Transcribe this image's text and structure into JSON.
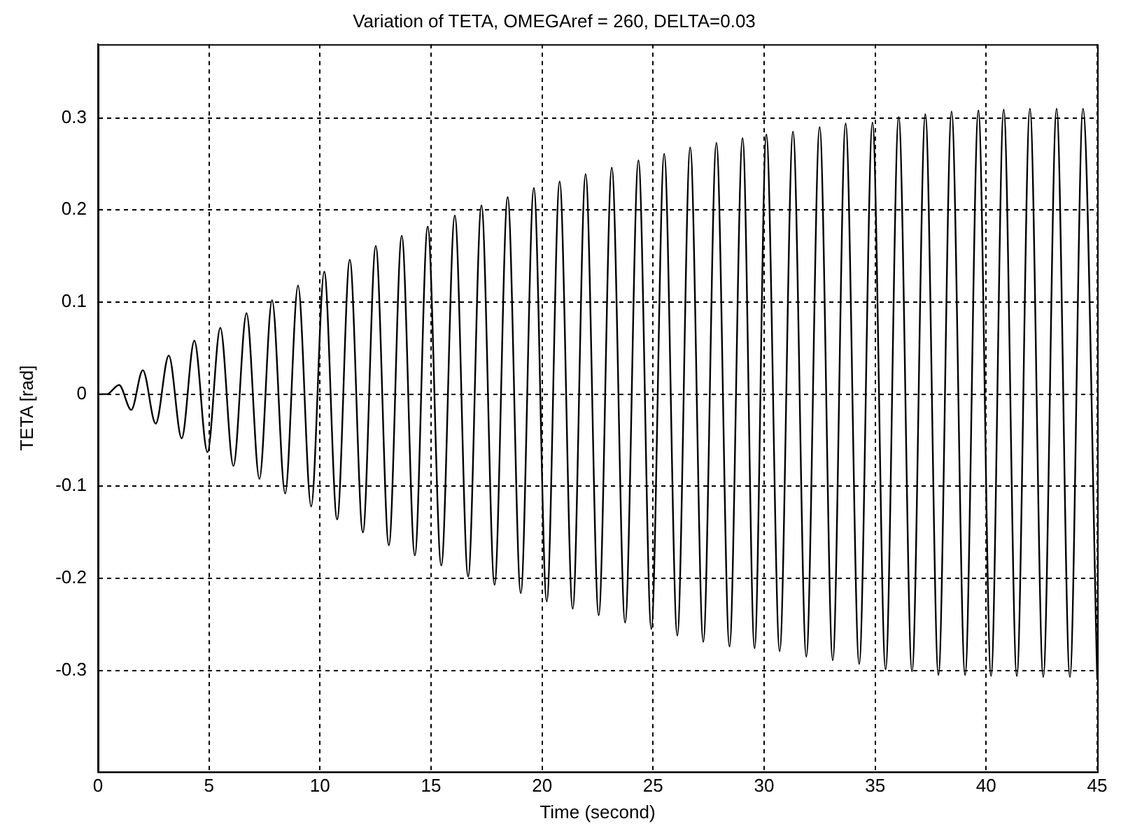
{
  "chart_data": {
    "type": "line",
    "title": "Variation of TETA, OMEGAref = 260, DELTA=0.03",
    "xlabel": "Time (second)",
    "ylabel": "TETA [rad]",
    "xlim": [
      0,
      45
    ],
    "xticks": [
      0,
      5,
      10,
      15,
      20,
      25,
      30,
      35,
      40,
      45
    ],
    "ylim": [
      -0.41,
      0.38
    ],
    "yticks": [
      -0.3,
      -0.2,
      -0.1,
      0,
      0.1,
      0.2,
      0.3
    ],
    "grid": true,
    "legend": false,
    "marker": "none",
    "line_style": "solid",
    "series": [
      {
        "color": "#000000",
        "x": [
          0,
          0.4,
          0.95,
          1.5,
          2.02,
          2.6,
          3.19,
          3.77,
          4.34,
          4.93,
          5.51,
          6.1,
          6.69,
          7.27,
          7.84,
          8.43,
          9.01,
          9.6,
          10.19,
          10.77,
          11.34,
          11.93,
          12.51,
          13.1,
          13.68,
          14.27,
          14.85,
          15.46,
          16.07,
          16.67,
          17.27,
          17.86,
          18.45,
          19.04,
          19.63,
          20.21,
          20.79,
          21.38,
          21.96,
          22.55,
          23.14,
          23.74,
          24.34,
          24.92,
          25.5,
          26.09,
          26.67,
          27.26,
          27.85,
          28.44,
          29.03,
          29.57,
          30.1,
          30.7,
          31.3,
          31.9,
          32.5,
          33.09,
          33.67,
          34.28,
          34.88,
          35.47,
          36.06,
          36.66,
          37.26,
          37.85,
          38.44,
          39.05,
          39.65,
          40.22,
          40.79,
          41.38,
          41.97,
          42.57,
          43.17,
          43.77,
          44.36,
          45
        ],
        "values": [
          0,
          0,
          0.01,
          -0.017,
          0.026,
          -0.032,
          0.042,
          -0.048,
          0.058,
          -0.063,
          0.072,
          -0.078,
          0.088,
          -0.092,
          0.102,
          -0.108,
          0.118,
          -0.122,
          0.133,
          -0.136,
          0.146,
          -0.15,
          0.161,
          -0.164,
          0.172,
          -0.175,
          0.182,
          -0.186,
          0.194,
          -0.198,
          0.205,
          -0.207,
          0.214,
          -0.216,
          0.224,
          -0.225,
          0.231,
          -0.233,
          0.239,
          -0.24,
          0.246,
          -0.248,
          0.254,
          -0.255,
          0.261,
          -0.262,
          0.268,
          -0.269,
          0.273,
          -0.274,
          0.278,
          -0.276,
          0.282,
          -0.279,
          0.285,
          -0.285,
          0.29,
          -0.289,
          0.294,
          -0.293,
          0.295,
          -0.299,
          0.301,
          -0.301,
          0.304,
          -0.305,
          0.307,
          -0.305,
          0.308,
          -0.306,
          0.309,
          -0.306,
          0.31,
          -0.307,
          0.31,
          -0.307,
          0.31,
          -0.31
        ]
      }
    ]
  }
}
